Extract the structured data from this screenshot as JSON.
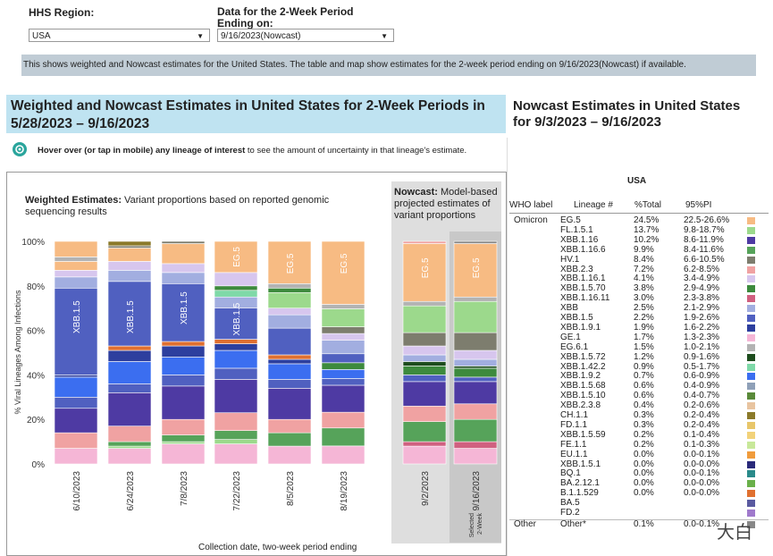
{
  "filters": {
    "region_label": "HHS Region:",
    "region_value": "USA",
    "period_label_1": "Data for the 2-Week Period",
    "period_label_2": "Ending on:",
    "period_value": "9/16/2023(Nowcast)"
  },
  "info_text": "This shows weighted and Nowcast estimates for the United States. The table and map show estimates for the 2-week period ending on 9/16/2023(Nowcast) if available.",
  "left_title_1": "Weighted and Nowcast Estimates in United States for 2-Week Periods in",
  "left_title_2": "5/28/2023 – 9/16/2023",
  "hover_bold": "Hover over (or tap in mobile) any lineage of interest",
  "hover_rest": " to see the amount of uncertainty in that lineage's estimate.",
  "weighted_bold": "Weighted Estimates:",
  "weighted_rest_1": " Variant proportions based on reported genomic",
  "weighted_rest_2": "sequencing results",
  "nowcast_bold": "Nowcast:",
  "nowcast_rest_1": " Model-based",
  "nowcast_rest_2": "projected estimates of",
  "nowcast_rest_3": "variant proportions",
  "xlabel": "Collection date, two-week period ending",
  "ylabel": "% Viral Lineages Among Infections",
  "selected_label_1": "Selected",
  "selected_label_2": "2-Week",
  "right_title_1": "Nowcast Estimates in United States",
  "right_title_2": "for 9/3/2023 – 9/16/2023",
  "table_region": "USA",
  "table_headers": [
    "WHO label",
    "Lineage #",
    "%Total",
    "95%PI"
  ],
  "group_omicron": "Omicron",
  "group_other": "Other",
  "table_rows": [
    {
      "lineage": "EG.5",
      "total": "24.5%",
      "pi": "22.5-26.6%",
      "color": "#f7bb83"
    },
    {
      "lineage": "FL.1.5.1",
      "total": "13.7%",
      "pi": "9.8-18.7%",
      "color": "#9cd98c"
    },
    {
      "lineage": "XBB.1.16",
      "total": "10.2%",
      "pi": "8.6-11.9%",
      "color": "#4e3aa3"
    },
    {
      "lineage": "XBB.1.16.6",
      "total": "9.9%",
      "pi": "8.4-11.6%",
      "color": "#56a35a"
    },
    {
      "lineage": "HV.1",
      "total": "8.4%",
      "pi": "6.6-10.5%",
      "color": "#7d7d6e"
    },
    {
      "lineage": "XBB.2.3",
      "total": "7.2%",
      "pi": "6.2-8.5%",
      "color": "#f0a2a2"
    },
    {
      "lineage": "XBB.1.16.1",
      "total": "4.1%",
      "pi": "3.4-4.9%",
      "color": "#d7c6ee"
    },
    {
      "lineage": "XBB.1.5.70",
      "total": "3.8%",
      "pi": "2.9-4.9%",
      "color": "#3d8a3d"
    },
    {
      "lineage": "XBB.1.16.11",
      "total": "3.0%",
      "pi": "2.3-3.8%",
      "color": "#d06080"
    },
    {
      "lineage": "XBB",
      "total": "2.5%",
      "pi": "2.1-2.9%",
      "color": "#a2aee0"
    },
    {
      "lineage": "XBB.1.5",
      "total": "2.2%",
      "pi": "1.9-2.6%",
      "color": "#5060c0"
    },
    {
      "lineage": "XBB.1.9.1",
      "total": "1.9%",
      "pi": "1.6-2.2%",
      "color": "#2d3f9e"
    },
    {
      "lineage": "GE.1",
      "total": "1.7%",
      "pi": "1.3-2.3%",
      "color": "#f5b6d6"
    },
    {
      "lineage": "EG.6.1",
      "total": "1.5%",
      "pi": "1.0-2.1%",
      "color": "#b3b3b3"
    },
    {
      "lineage": "XBB.1.5.72",
      "total": "1.2%",
      "pi": "0.9-1.6%",
      "color": "#1e4d1e"
    },
    {
      "lineage": "XBB.1.42.2",
      "total": "0.9%",
      "pi": "0.5-1.7%",
      "color": "#7fd9a8"
    },
    {
      "lineage": "XBB.1.9.2",
      "total": "0.7%",
      "pi": "0.6-0.9%",
      "color": "#3b6ef0"
    },
    {
      "lineage": "XBB.1.5.68",
      "total": "0.6%",
      "pi": "0.4-0.9%",
      "color": "#8fa0b8"
    },
    {
      "lineage": "XBB.1.5.10",
      "total": "0.6%",
      "pi": "0.4-0.7%",
      "color": "#5a8a3a"
    },
    {
      "lineage": "XBB.2.3.8",
      "total": "0.4%",
      "pi": "0.2-0.6%",
      "color": "#e8c4a0"
    },
    {
      "lineage": "CH.1.1",
      "total": "0.3%",
      "pi": "0.2-0.4%",
      "color": "#8b7a2a"
    },
    {
      "lineage": "FD.1.1",
      "total": "0.3%",
      "pi": "0.2-0.4%",
      "color": "#e8c66a"
    },
    {
      "lineage": "XBB.1.5.59",
      "total": "0.2%",
      "pi": "0.1-0.4%",
      "color": "#f2d27a"
    },
    {
      "lineage": "FE.1.1",
      "total": "0.2%",
      "pi": "0.1-0.3%",
      "color": "#c8e89a"
    },
    {
      "lineage": "EU.1.1",
      "total": "0.0%",
      "pi": "0.0-0.1%",
      "color": "#f09c3c"
    },
    {
      "lineage": "XBB.1.5.1",
      "total": "0.0%",
      "pi": "0.0-0.0%",
      "color": "#2a2a7a"
    },
    {
      "lineage": "BQ.1",
      "total": "0.0%",
      "pi": "0.0-0.1%",
      "color": "#2a8a8a"
    },
    {
      "lineage": "BA.2.12.1",
      "total": "0.0%",
      "pi": "0.0-0.0%",
      "color": "#6ab04a"
    },
    {
      "lineage": "B.1.1.529",
      "total": "0.0%",
      "pi": "0.0-0.0%",
      "color": "#e07030"
    },
    {
      "lineage": "BA.5",
      "total": "",
      "pi": "",
      "color": "#5a5aa0"
    },
    {
      "lineage": "FD.2",
      "total": "",
      "pi": "",
      "color": "#a07acc"
    }
  ],
  "other_row": {
    "lineage": "Other*",
    "total": "0.1%",
    "pi": "0.0-0.1%",
    "color": "#888888"
  },
  "watermark": "大白",
  "chart_data": {
    "type": "bar",
    "stacked": true,
    "ylim": [
      0,
      100
    ],
    "yticks": [
      "0%",
      "20%",
      "40%",
      "60%",
      "80%",
      "100%"
    ],
    "categories": [
      "6/10/2023",
      "6/24/2023",
      "7/8/2023",
      "7/22/2023",
      "8/5/2023",
      "8/19/2023",
      "9/2/2023",
      "9/16/2023"
    ],
    "nowcast_from_index": 6,
    "selected_index": 7,
    "stacks": [
      [
        [
          7,
          "#f5b6d6"
        ],
        [
          7,
          "#f0a2a2"
        ],
        [
          11,
          "#4e3aa3"
        ],
        [
          5,
          "#5060c0"
        ],
        [
          9,
          "#3b6ef0"
        ],
        [
          1,
          "#2d3f9e"
        ],
        [
          39,
          "#5060c0"
        ],
        [
          5,
          "#a2aee0"
        ],
        [
          3,
          "#d7c6ee"
        ],
        [
          4,
          "#f7bb83"
        ],
        [
          2,
          "#b3b3b3"
        ],
        [
          7,
          "#f7bb83"
        ]
      ],
      [
        [
          7,
          "#f5b6d6"
        ],
        [
          1,
          "#9cd98c"
        ],
        [
          2,
          "#56a35a"
        ],
        [
          7,
          "#f0a2a2"
        ],
        [
          15,
          "#4e3aa3"
        ],
        [
          4,
          "#5060c0"
        ],
        [
          10,
          "#3b6ef0"
        ],
        [
          5,
          "#2d3f9e"
        ],
        [
          2,
          "#e07030"
        ],
        [
          29,
          "#5060c0"
        ],
        [
          5,
          "#a2aee0"
        ],
        [
          4,
          "#d7c6ee"
        ],
        [
          6,
          "#f7bb83"
        ],
        [
          1,
          "#7d7d6e"
        ],
        [
          2,
          "#8b7a2a"
        ]
      ],
      [
        [
          9,
          "#f5b6d6"
        ],
        [
          1,
          "#9cd98c"
        ],
        [
          3,
          "#56a35a"
        ],
        [
          7,
          "#f0a2a2"
        ],
        [
          15,
          "#4e3aa3"
        ],
        [
          5,
          "#5060c0"
        ],
        [
          8,
          "#3b6ef0"
        ],
        [
          5,
          "#2d3f9e"
        ],
        [
          2,
          "#e07030"
        ],
        [
          26,
          "#5060c0"
        ],
        [
          5,
          "#a2aee0"
        ],
        [
          4,
          "#d7c6ee"
        ],
        [
          9,
          "#f7bb83"
        ],
        [
          1,
          "#7d7d6e"
        ]
      ],
      [
        [
          9,
          "#f5b6d6"
        ],
        [
          2,
          "#9cd98c"
        ],
        [
          4,
          "#56a35a"
        ],
        [
          8,
          "#f0a2a2"
        ],
        [
          15,
          "#4e3aa3"
        ],
        [
          5,
          "#5060c0"
        ],
        [
          8,
          "#3b6ef0"
        ],
        [
          3,
          "#2d3f9e"
        ],
        [
          2,
          "#e07030"
        ],
        [
          14,
          "#5060c0"
        ],
        [
          5,
          "#a2aee0"
        ],
        [
          3,
          "#7fd9a8"
        ],
        [
          2,
          "#3d8a3d"
        ],
        [
          6,
          "#d7c6ee"
        ],
        [
          14,
          "#f7bb83"
        ]
      ],
      [
        [
          8,
          "#f5b6d6"
        ],
        [
          6,
          "#56a35a"
        ],
        [
          6,
          "#f0a2a2"
        ],
        [
          14,
          "#4e3aa3"
        ],
        [
          4,
          "#5060c0"
        ],
        [
          7,
          "#3b6ef0"
        ],
        [
          2,
          "#2d3f9e"
        ],
        [
          2,
          "#e07030"
        ],
        [
          12,
          "#5060c0"
        ],
        [
          6,
          "#a2aee0"
        ],
        [
          3,
          "#d7c6ee"
        ],
        [
          7,
          "#9cd98c"
        ],
        [
          2,
          "#3d8a3d"
        ],
        [
          2,
          "#b3b3b3"
        ],
        [
          19,
          "#f7bb83"
        ]
      ],
      [
        [
          8,
          "#f5b6d6"
        ],
        [
          8,
          "#56a35a"
        ],
        [
          7,
          "#f0a2a2"
        ],
        [
          12,
          "#4e3aa3"
        ],
        [
          3,
          "#5060c0"
        ],
        [
          4,
          "#3b6ef0"
        ],
        [
          3,
          "#3d8a3d"
        ],
        [
          4,
          "#5060c0"
        ],
        [
          6,
          "#a2aee0"
        ],
        [
          3,
          "#d7c6ee"
        ],
        [
          3,
          "#7d7d6e"
        ],
        [
          8,
          "#9cd98c"
        ],
        [
          2,
          "#b3b3b3"
        ],
        [
          28,
          "#f7bb83"
        ]
      ],
      [
        [
          8,
          "#f5b6d6"
        ],
        [
          2,
          "#d06080"
        ],
        [
          9,
          "#56a35a"
        ],
        [
          7,
          "#f0a2a2"
        ],
        [
          11,
          "#4e3aa3"
        ],
        [
          3,
          "#5060c0"
        ],
        [
          4,
          "#3d8a3d"
        ],
        [
          2,
          "#1e4d1e"
        ],
        [
          3,
          "#a2aee0"
        ],
        [
          4,
          "#d7c6ee"
        ],
        [
          6,
          "#7d7d6e"
        ],
        [
          12,
          "#9cd98c"
        ],
        [
          2,
          "#b3b3b3"
        ],
        [
          26,
          "#f7bb83"
        ],
        [
          1,
          "#f0a2a2"
        ]
      ],
      [
        [
          7,
          "#f5b6d6"
        ],
        [
          3,
          "#d06080"
        ],
        [
          10,
          "#56a35a"
        ],
        [
          7,
          "#f0a2a2"
        ],
        [
          10,
          "#4e3aa3"
        ],
        [
          2,
          "#5060c0"
        ],
        [
          4,
          "#3d8a3d"
        ],
        [
          1,
          "#1e4d1e"
        ],
        [
          3,
          "#a2aee0"
        ],
        [
          4,
          "#d7c6ee"
        ],
        [
          8,
          "#7d7d6e"
        ],
        [
          14,
          "#9cd98c"
        ],
        [
          2,
          "#b3b3b3"
        ],
        [
          24,
          "#f7bb83"
        ],
        [
          1,
          "#888888"
        ]
      ]
    ],
    "bar_labels": [
      {
        "bar": 0,
        "text": "XBB.1.5",
        "mid": 66
      },
      {
        "bar": 1,
        "text": "XBB.1.5",
        "mid": 66
      },
      {
        "bar": 2,
        "text": "XBB.1.5",
        "mid": 70
      },
      {
        "bar": 3,
        "text": "XBB.1.5",
        "mid": 65
      },
      {
        "bar": 3,
        "text": "EG.5",
        "mid": 93
      },
      {
        "bar": 4,
        "text": "EG.5",
        "mid": 90
      },
      {
        "bar": 5,
        "text": "EG.5",
        "mid": 90
      },
      {
        "bar": 6,
        "text": "EG.5",
        "mid": 88
      },
      {
        "bar": 7,
        "text": "EG.5",
        "mid": 88
      }
    ]
  }
}
